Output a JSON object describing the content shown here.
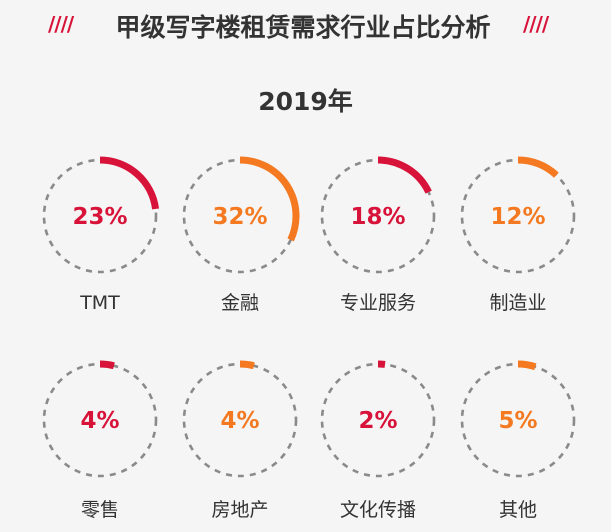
{
  "header": {
    "slashes": "////",
    "title": "甲级写字楼租赁需求行业占比分析"
  },
  "year": "2019年",
  "colors": {
    "red": "#d8133a",
    "orange": "#f47920",
    "ring_dashed": "#8a8a8a",
    "text_dark": "#333333",
    "slashes": "#d8133a"
  },
  "chart_data": {
    "type": "pie",
    "title": "甲级写字楼租赁需求行业占比分析",
    "subtitle": "2019年",
    "unit": "%",
    "categories": [
      "TMT",
      "金融",
      "专业服务",
      "制造业",
      "零售",
      "房地产",
      "文化传播",
      "其他"
    ],
    "values": [
      23,
      32,
      18,
      12,
      4,
      4,
      2,
      5
    ],
    "labels": [
      "23%",
      "32%",
      "18%",
      "12%",
      "4%",
      "4%",
      "2%",
      "5%"
    ],
    "series_colors": [
      "red",
      "orange",
      "red",
      "orange",
      "red",
      "orange",
      "red",
      "orange"
    ]
  }
}
